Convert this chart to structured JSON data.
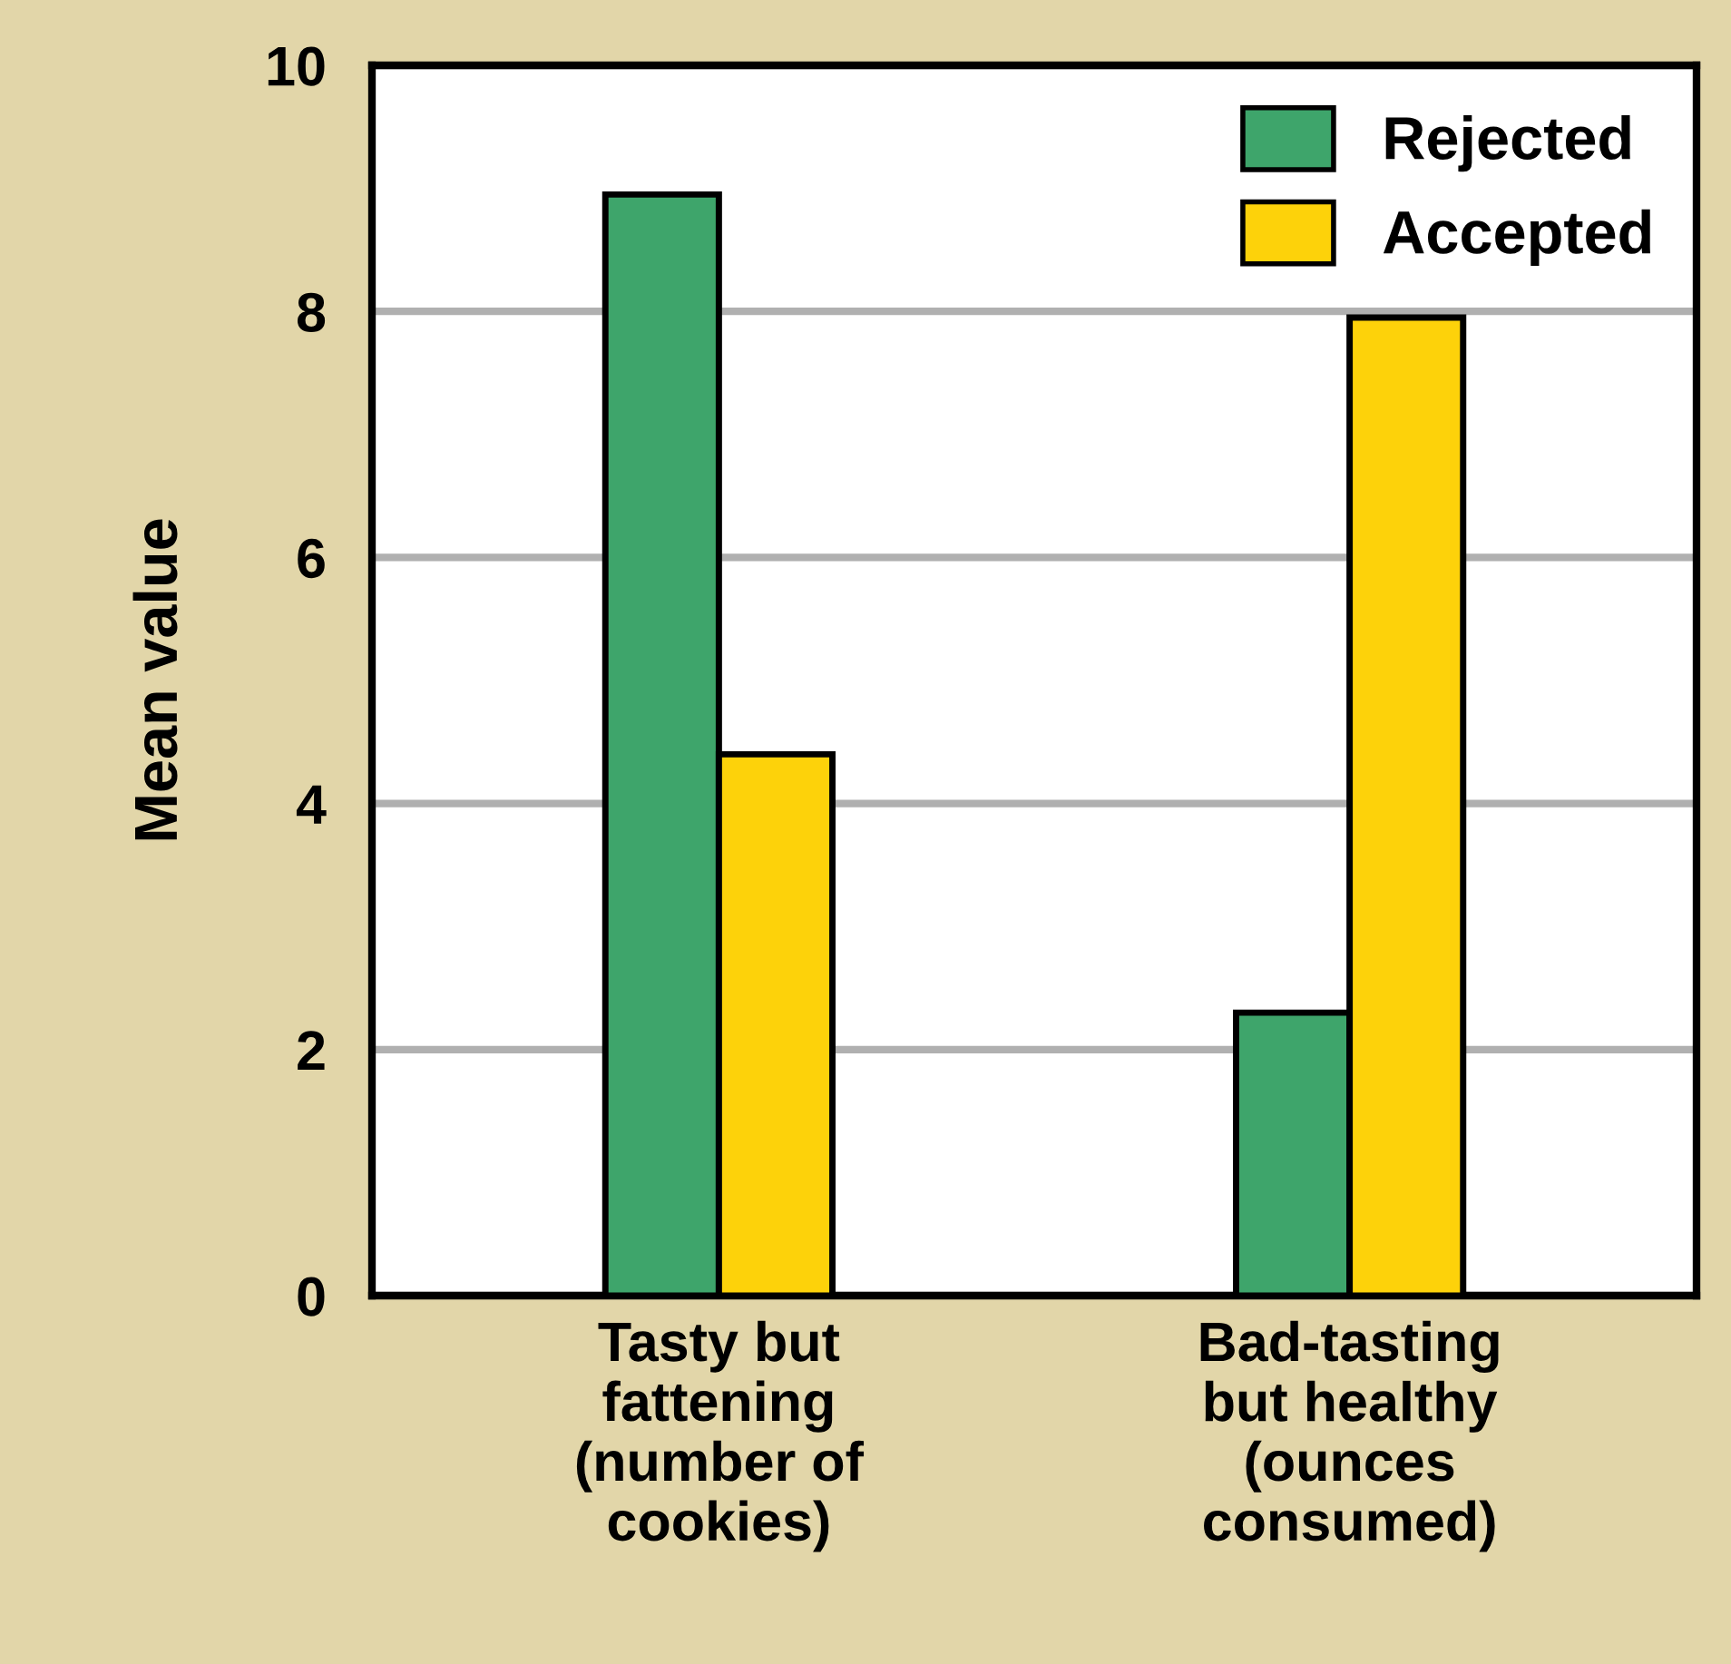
{
  "chart_data": {
    "type": "bar",
    "ylabel": "Mean value",
    "categories": [
      "Tasty but\nfattening\n(number of\ncookies)",
      "Bad-tasting\nbut healthy\n(ounces\nconsumed)"
    ],
    "series": [
      {
        "name": "Rejected",
        "color": "#3ea56b",
        "values": [
          8.95,
          2.3
        ]
      },
      {
        "name": "Accepted",
        "color": "#fdd20a",
        "values": [
          4.4,
          7.95
        ]
      }
    ],
    "ylim": [
      0,
      10
    ],
    "yticks": [
      0,
      2,
      4,
      6,
      8,
      10
    ],
    "grid": "y",
    "legend": "top right"
  }
}
